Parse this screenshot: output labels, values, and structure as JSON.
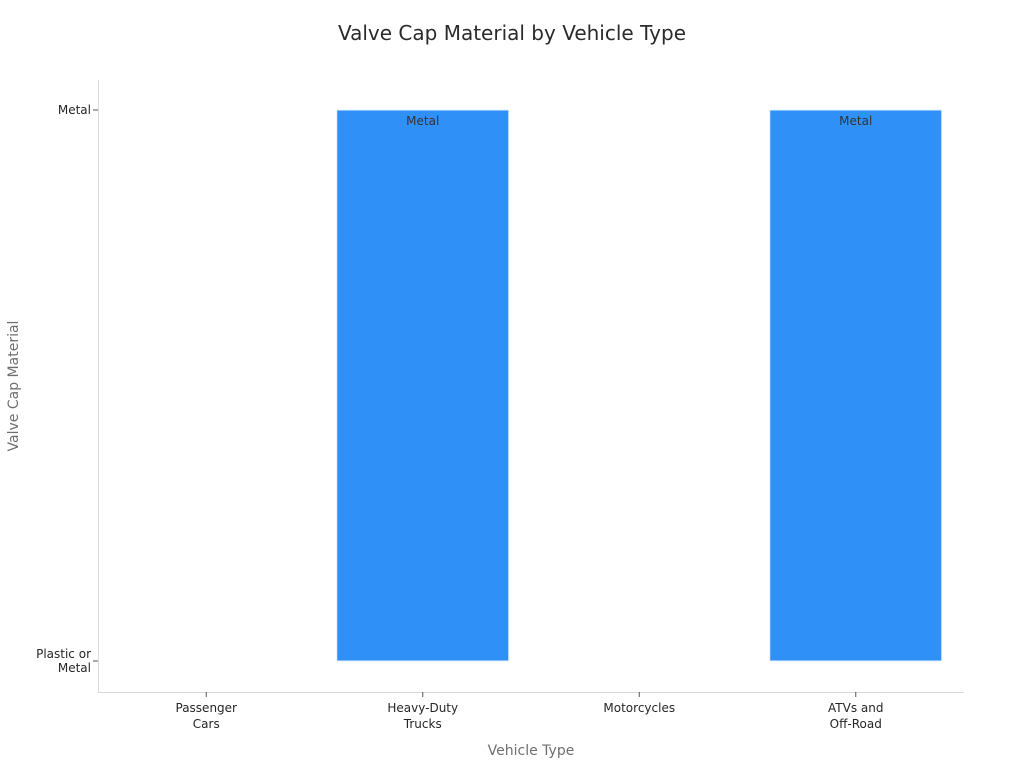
{
  "chart_data": {
    "type": "bar",
    "title": "Valve Cap Material by Vehicle Type",
    "xlabel": "Vehicle Type",
    "ylabel": "Valve Cap Material",
    "categories": [
      "Passenger\nCars",
      "Heavy-Duty\nTrucks",
      "Motorcycles",
      "ATVs and\nOff-Road"
    ],
    "y_categories": [
      "Plastic or\nMetal",
      "Metal"
    ],
    "bars": [
      {
        "category": "Passenger\nCars",
        "from": "Plastic or\nMetal",
        "to": "Plastic or\nMetal",
        "label": ""
      },
      {
        "category": "Heavy-Duty\nTrucks",
        "from": "Plastic or\nMetal",
        "to": "Metal",
        "label": "Metal"
      },
      {
        "category": "Motorcycles",
        "from": "Plastic or\nMetal",
        "to": "Plastic or\nMetal",
        "label": ""
      },
      {
        "category": "ATVs and\nOff-Road",
        "from": "Plastic or\nMetal",
        "to": "Metal",
        "label": "Metal"
      }
    ],
    "bar_color": "#2f91f7",
    "grid": false,
    "legend": "none"
  }
}
